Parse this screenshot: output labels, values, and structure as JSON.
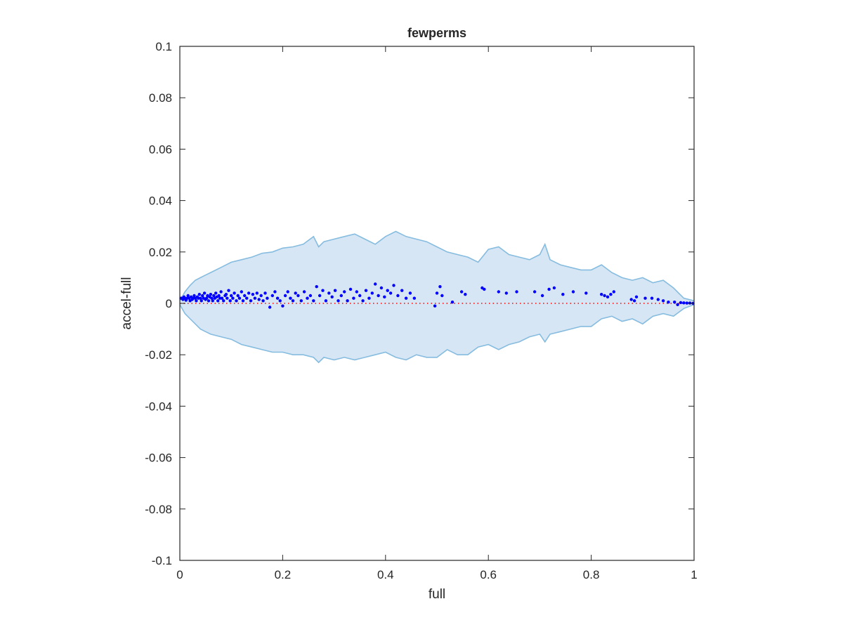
{
  "chart_data": {
    "type": "scatter",
    "title": "fewperms",
    "xlabel": "full",
    "ylabel": "accel-full",
    "xlim": [
      0,
      1
    ],
    "ylim": [
      -0.1,
      0.1
    ],
    "xticks": [
      "0",
      "0.2",
      "0.4",
      "0.6",
      "0.8",
      "1"
    ],
    "yticks": [
      "-0.1",
      "-0.08",
      "-0.06",
      "-0.04",
      "-0.02",
      "0",
      "0.02",
      "0.04",
      "0.06",
      "0.08",
      "0.1"
    ],
    "grid": false,
    "colors": {
      "band_fill": "#d6e6f4",
      "band_edge": "#86bcdf",
      "points": "#0000ff",
      "zero_line": "#ff0000",
      "axes": "#262626"
    },
    "band": {
      "x": [
        0,
        0.01,
        0.02,
        0.03,
        0.04,
        0.05,
        0.06,
        0.08,
        0.1,
        0.12,
        0.14,
        0.16,
        0.18,
        0.2,
        0.22,
        0.24,
        0.26,
        0.27,
        0.28,
        0.3,
        0.32,
        0.34,
        0.36,
        0.38,
        0.4,
        0.42,
        0.44,
        0.46,
        0.48,
        0.5,
        0.52,
        0.54,
        0.56,
        0.58,
        0.6,
        0.62,
        0.64,
        0.66,
        0.68,
        0.7,
        0.71,
        0.72,
        0.74,
        0.76,
        0.78,
        0.8,
        0.82,
        0.84,
        0.86,
        0.88,
        0.9,
        0.92,
        0.94,
        0.96,
        0.98,
        1.0
      ],
      "upper": [
        0.001,
        0.0045,
        0.007,
        0.009,
        0.01,
        0.011,
        0.012,
        0.014,
        0.016,
        0.017,
        0.018,
        0.0195,
        0.02,
        0.0215,
        0.022,
        0.023,
        0.026,
        0.022,
        0.024,
        0.025,
        0.026,
        0.027,
        0.025,
        0.023,
        0.026,
        0.028,
        0.026,
        0.025,
        0.024,
        0.022,
        0.02,
        0.019,
        0.018,
        0.016,
        0.021,
        0.022,
        0.019,
        0.018,
        0.017,
        0.019,
        0.023,
        0.017,
        0.015,
        0.014,
        0.013,
        0.013,
        0.015,
        0.012,
        0.01,
        0.009,
        0.01,
        0.008,
        0.009,
        0.006,
        0.002,
        0.001
      ],
      "lower": [
        -0.0005,
        -0.004,
        -0.006,
        -0.008,
        -0.01,
        -0.011,
        -0.012,
        -0.013,
        -0.014,
        -0.016,
        -0.017,
        -0.018,
        -0.019,
        -0.019,
        -0.02,
        -0.02,
        -0.021,
        -0.023,
        -0.021,
        -0.022,
        -0.021,
        -0.022,
        -0.021,
        -0.02,
        -0.019,
        -0.021,
        -0.022,
        -0.02,
        -0.021,
        -0.021,
        -0.018,
        -0.02,
        -0.02,
        -0.017,
        -0.016,
        -0.018,
        -0.016,
        -0.015,
        -0.013,
        -0.012,
        -0.015,
        -0.012,
        -0.011,
        -0.01,
        -0.009,
        -0.009,
        -0.006,
        -0.005,
        -0.007,
        -0.006,
        -0.008,
        -0.005,
        -0.004,
        -0.005,
        -0.002,
        -0.0005
      ]
    },
    "points": [
      [
        0.002,
        0.002
      ],
      [
        0.004,
        0.002
      ],
      [
        0.006,
        0.0015
      ],
      [
        0.008,
        0.0025
      ],
      [
        0.01,
        0.002
      ],
      [
        0.012,
        0.0012
      ],
      [
        0.014,
        0.002
      ],
      [
        0.016,
        0.003
      ],
      [
        0.018,
        0.002
      ],
      [
        0.02,
        0.001
      ],
      [
        0.022,
        0.0025
      ],
      [
        0.024,
        0.0015
      ],
      [
        0.026,
        0.002
      ],
      [
        0.028,
        0.003
      ],
      [
        0.03,
        0.002
      ],
      [
        0.032,
        0.001
      ],
      [
        0.034,
        0.0025
      ],
      [
        0.036,
        0.002
      ],
      [
        0.038,
        0.0035
      ],
      [
        0.04,
        0.002
      ],
      [
        0.042,
        0.001
      ],
      [
        0.044,
        0.003
      ],
      [
        0.046,
        0.002
      ],
      [
        0.048,
        0.004
      ],
      [
        0.05,
        0.0015
      ],
      [
        0.052,
        0.002
      ],
      [
        0.054,
        0.003
      ],
      [
        0.056,
        0.001
      ],
      [
        0.058,
        0.0025
      ],
      [
        0.06,
        0.0035
      ],
      [
        0.062,
        0.002
      ],
      [
        0.064,
        0.001
      ],
      [
        0.066,
        0.003
      ],
      [
        0.068,
        0.002
      ],
      [
        0.07,
        0.004
      ],
      [
        0.072,
        0.0025
      ],
      [
        0.074,
        0.001
      ],
      [
        0.076,
        0.003
      ],
      [
        0.078,
        0.002
      ],
      [
        0.08,
        0.0045
      ],
      [
        0.082,
        0.002
      ],
      [
        0.085,
        0.001
      ],
      [
        0.088,
        0.003
      ],
      [
        0.09,
        0.0035
      ],
      [
        0.092,
        0.002
      ],
      [
        0.095,
        0.005
      ],
      [
        0.098,
        0.001
      ],
      [
        0.1,
        0.003
      ],
      [
        0.103,
        0.002
      ],
      [
        0.106,
        0.004
      ],
      [
        0.11,
        0.001
      ],
      [
        0.113,
        0.003
      ],
      [
        0.116,
        0.002
      ],
      [
        0.12,
        0.0045
      ],
      [
        0.123,
        0.001
      ],
      [
        0.126,
        0.003
      ],
      [
        0.13,
        0.002
      ],
      [
        0.134,
        0.004
      ],
      [
        0.138,
        0.001
      ],
      [
        0.142,
        0.0035
      ],
      [
        0.146,
        0.002
      ],
      [
        0.15,
        0.004
      ],
      [
        0.154,
        0.0015
      ],
      [
        0.158,
        0.003
      ],
      [
        0.162,
        0.001
      ],
      [
        0.166,
        0.004
      ],
      [
        0.17,
        0.002
      ],
      [
        0.175,
        -0.0015
      ],
      [
        0.18,
        0.003
      ],
      [
        0.185,
        0.0045
      ],
      [
        0.19,
        0.002
      ],
      [
        0.195,
        0.001
      ],
      [
        0.2,
        -0.001
      ],
      [
        0.205,
        0.003
      ],
      [
        0.21,
        0.0045
      ],
      [
        0.215,
        0.002
      ],
      [
        0.22,
        0.001
      ],
      [
        0.225,
        0.004
      ],
      [
        0.23,
        0.003
      ],
      [
        0.236,
        0.001
      ],
      [
        0.242,
        0.0045
      ],
      [
        0.248,
        0.002
      ],
      [
        0.254,
        0.003
      ],
      [
        0.26,
        0.001
      ],
      [
        0.266,
        0.0065
      ],
      [
        0.272,
        0.003
      ],
      [
        0.278,
        0.005
      ],
      [
        0.284,
        0.001
      ],
      [
        0.29,
        0.004
      ],
      [
        0.296,
        0.0025
      ],
      [
        0.302,
        0.005
      ],
      [
        0.308,
        0.001
      ],
      [
        0.314,
        0.003
      ],
      [
        0.32,
        0.0045
      ],
      [
        0.326,
        0.001
      ],
      [
        0.332,
        0.0055
      ],
      [
        0.338,
        0.002
      ],
      [
        0.344,
        0.0045
      ],
      [
        0.35,
        0.003
      ],
      [
        0.356,
        0.001
      ],
      [
        0.362,
        0.005
      ],
      [
        0.368,
        0.002
      ],
      [
        0.374,
        0.004
      ],
      [
        0.38,
        0.0075
      ],
      [
        0.386,
        0.003
      ],
      [
        0.392,
        0.006
      ],
      [
        0.398,
        0.0025
      ],
      [
        0.404,
        0.005
      ],
      [
        0.41,
        0.004
      ],
      [
        0.416,
        0.007
      ],
      [
        0.424,
        0.003
      ],
      [
        0.432,
        0.005
      ],
      [
        0.44,
        0.002
      ],
      [
        0.448,
        0.004
      ],
      [
        0.456,
        0.002
      ],
      [
        0.496,
        -0.001
      ],
      [
        0.5,
        0.004
      ],
      [
        0.506,
        0.0065
      ],
      [
        0.51,
        0.003
      ],
      [
        0.53,
        0.0005
      ],
      [
        0.548,
        0.0045
      ],
      [
        0.555,
        0.0035
      ],
      [
        0.588,
        0.006
      ],
      [
        0.592,
        0.0055
      ],
      [
        0.62,
        0.0045
      ],
      [
        0.635,
        0.004
      ],
      [
        0.655,
        0.0045
      ],
      [
        0.69,
        0.0045
      ],
      [
        0.705,
        0.003
      ],
      [
        0.718,
        0.0055
      ],
      [
        0.728,
        0.006
      ],
      [
        0.745,
        0.0035
      ],
      [
        0.765,
        0.0045
      ],
      [
        0.79,
        0.004
      ],
      [
        0.82,
        0.0035
      ],
      [
        0.826,
        0.003
      ],
      [
        0.832,
        0.0025
      ],
      [
        0.838,
        0.0035
      ],
      [
        0.844,
        0.0045
      ],
      [
        0.878,
        0.0015
      ],
      [
        0.884,
        0.001
      ],
      [
        0.888,
        0.0025
      ],
      [
        0.905,
        0.002
      ],
      [
        0.918,
        0.002
      ],
      [
        0.93,
        0.0015
      ],
      [
        0.94,
        0.001
      ],
      [
        0.95,
        0.0005
      ],
      [
        0.962,
        0.0005
      ],
      [
        0.968,
        -0.0005
      ],
      [
        0.974,
        0.0003
      ],
      [
        0.98,
        0.0002
      ],
      [
        0.986,
        0.0001
      ],
      [
        0.992,
        0.0001
      ],
      [
        0.998,
        0
      ]
    ]
  }
}
